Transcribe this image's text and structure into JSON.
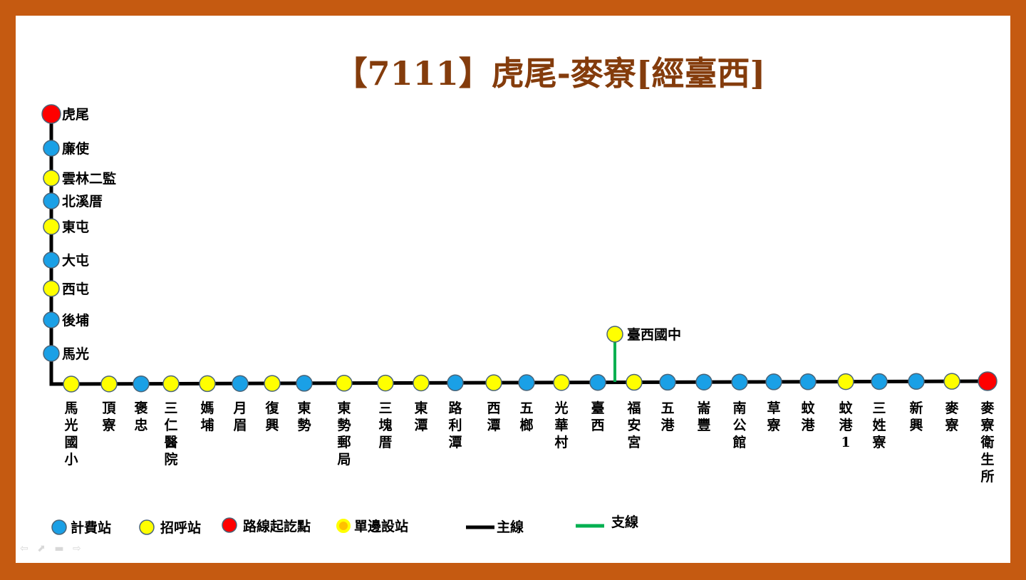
{
  "title": "【7111】虎尾-麥寮[經臺西]",
  "colors": {
    "toll": "#1aa0e6",
    "flag": "#ffff00",
    "terminal": "#ff0000",
    "one_side_fill": "#ffc000",
    "one_side_border": "#ffff00",
    "main_line": "#000000",
    "branch_line": "#00b050",
    "stop_border": "#4a6478"
  },
  "vertical_stops": [
    {
      "name": "虎尾",
      "type": "terminal"
    },
    {
      "name": "廉使",
      "type": "toll"
    },
    {
      "name": "雲林二監",
      "type": "flag"
    },
    {
      "name": "北溪厝",
      "type": "toll"
    },
    {
      "name": "東屯",
      "type": "flag"
    },
    {
      "name": "大屯",
      "type": "toll"
    },
    {
      "name": "西屯",
      "type": "flag"
    },
    {
      "name": "後埔",
      "type": "toll"
    },
    {
      "name": "馬光",
      "type": "toll"
    }
  ],
  "horizontal_stops": [
    {
      "name": "馬光國小",
      "type": "flag"
    },
    {
      "name": "頂寮",
      "type": "flag"
    },
    {
      "name": "褒忠",
      "type": "toll"
    },
    {
      "name": "三仁醫院",
      "type": "flag"
    },
    {
      "name": "媽埔",
      "type": "flag"
    },
    {
      "name": "月眉",
      "type": "toll"
    },
    {
      "name": "復興",
      "type": "flag"
    },
    {
      "name": "東勢",
      "type": "toll"
    },
    {
      "name": "東勢郵局",
      "type": "flag"
    },
    {
      "name": "三塊厝",
      "type": "flag"
    },
    {
      "name": "東潭",
      "type": "flag"
    },
    {
      "name": "路利潭",
      "type": "toll"
    },
    {
      "name": "西潭",
      "type": "flag"
    },
    {
      "name": "五榔",
      "type": "toll"
    },
    {
      "name": "光華村",
      "type": "flag"
    },
    {
      "name": "臺西",
      "type": "toll"
    },
    {
      "name": "福安宮",
      "type": "flag"
    },
    {
      "name": "五港",
      "type": "toll"
    },
    {
      "name": "崙豐",
      "type": "toll"
    },
    {
      "name": "南公館",
      "type": "toll"
    },
    {
      "name": "草寮",
      "type": "toll"
    },
    {
      "name": "蚊港",
      "type": "toll"
    },
    {
      "name": "蚊港1",
      "type": "flag"
    },
    {
      "name": "三姓寮",
      "type": "toll"
    },
    {
      "name": "新興",
      "type": "toll"
    },
    {
      "name": "麥寮",
      "type": "flag"
    },
    {
      "name": "麥寮衛生所",
      "type": "terminal"
    }
  ],
  "branch_stop": {
    "name": "臺西國中",
    "type": "flag"
  },
  "legend": {
    "toll": "計費站",
    "flag": "招呼站",
    "terminal": "路線起訖點",
    "one_side": "單邊設站",
    "main_line": "主線",
    "branch_line": "支線"
  }
}
